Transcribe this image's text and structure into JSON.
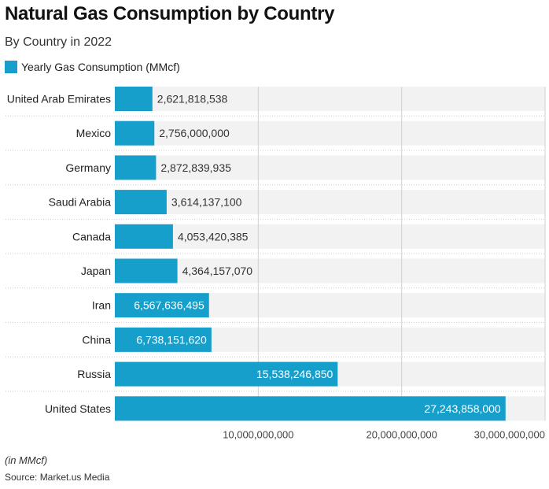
{
  "title": "Natural Gas Consumption by Country",
  "subtitle": "By Country in 2022",
  "unit_note": "(in MMcf)",
  "source": "Source: Market.us Media",
  "colors": {
    "bar": "#179fcc",
    "band": "#f2f2f2",
    "grid": "#d0d0d0"
  },
  "chart_data": {
    "type": "bar",
    "orientation": "horizontal",
    "categories": [
      "United Arab Emirates",
      "Mexico",
      "Germany",
      "Saudi Arabia",
      "Canada",
      "Japan",
      "Iran",
      "China",
      "Russia",
      "United States"
    ],
    "series": [
      {
        "name": "Yearly Gas Consumption (MMcf)",
        "values": [
          2621818538,
          2756000000,
          2872839935,
          3614137100,
          4053420385,
          4364157070,
          6567636495,
          6738151620,
          15538246850,
          27243858000
        ]
      }
    ],
    "data_labels": [
      "2,621,818,538",
      "2,756,000,000",
      "2,872,839,935",
      "3,614,137,100",
      "4,053,420,385",
      "4,364,157,070",
      "6,567,636,495",
      "6,738,151,620",
      "15,538,246,850",
      "27,243,858,000"
    ],
    "xlim": [
      0,
      30000000000
    ],
    "x_ticks": [
      10000000000,
      20000000000,
      30000000000
    ],
    "x_tick_labels": [
      "10,000,000,000",
      "20,000,000,000",
      "30,000,000,000"
    ],
    "grid": true,
    "legend": "top-left"
  }
}
